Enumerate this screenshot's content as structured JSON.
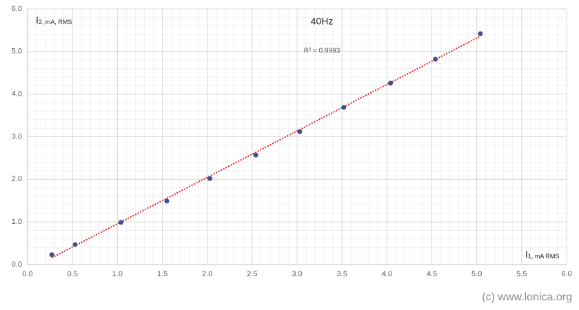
{
  "chart_data": {
    "type": "scatter",
    "title": "40Hz",
    "annotation": "R² = 0.9993",
    "x_label": {
      "text": "I",
      "sub": "1, mA RMS"
    },
    "y_label": {
      "text": "I",
      "sub": "2, mA, RMS"
    },
    "watermark": "(c) www.lonica.org",
    "series": [
      {
        "color": "#3f4f8f",
        "x": [
          0.27,
          0.53,
          1.04,
          1.55,
          2.03,
          2.54,
          3.03,
          3.52,
          4.04,
          4.54,
          5.04
        ],
        "values": [
          0.23,
          0.47,
          0.99,
          1.49,
          2.02,
          2.57,
          3.12,
          3.69,
          4.26,
          4.82,
          5.42
        ]
      }
    ],
    "trendline": {
      "color": "#e02020",
      "x": [
        0.27,
        5.04
      ],
      "values": [
        0.16,
        5.36
      ]
    },
    "xlim": [
      0,
      6
    ],
    "ylim": [
      0,
      6
    ],
    "xticks": [
      {
        "value": 0,
        "label": "0.0"
      },
      {
        "value": 0.5,
        "label": "0.5"
      },
      {
        "value": 1,
        "label": "1.0"
      },
      {
        "value": 1.5,
        "label": "1.5"
      },
      {
        "value": 2,
        "label": "2.0"
      },
      {
        "value": 2.5,
        "label": "2.5"
      },
      {
        "value": 3,
        "label": "3.0"
      },
      {
        "value": 3.5,
        "label": "3.5"
      },
      {
        "value": 4,
        "label": "4.0"
      },
      {
        "value": 4.5,
        "label": "4.5"
      },
      {
        "value": 5,
        "label": "5.0"
      },
      {
        "value": 5.5,
        "label": "5.5"
      },
      {
        "value": 6,
        "label": "6.0"
      }
    ],
    "yticks": [
      {
        "value": 0,
        "label": "0.0"
      },
      {
        "value": 1,
        "label": "1.0"
      },
      {
        "value": 2,
        "label": "2.0"
      },
      {
        "value": 3,
        "label": "3.0"
      },
      {
        "value": 4,
        "label": "4.0"
      },
      {
        "value": 5,
        "label": "5.0"
      },
      {
        "value": 6,
        "label": "6.0"
      }
    ],
    "grid": true,
    "minor_grid": {
      "x": 0.1,
      "y": 0.2
    }
  }
}
